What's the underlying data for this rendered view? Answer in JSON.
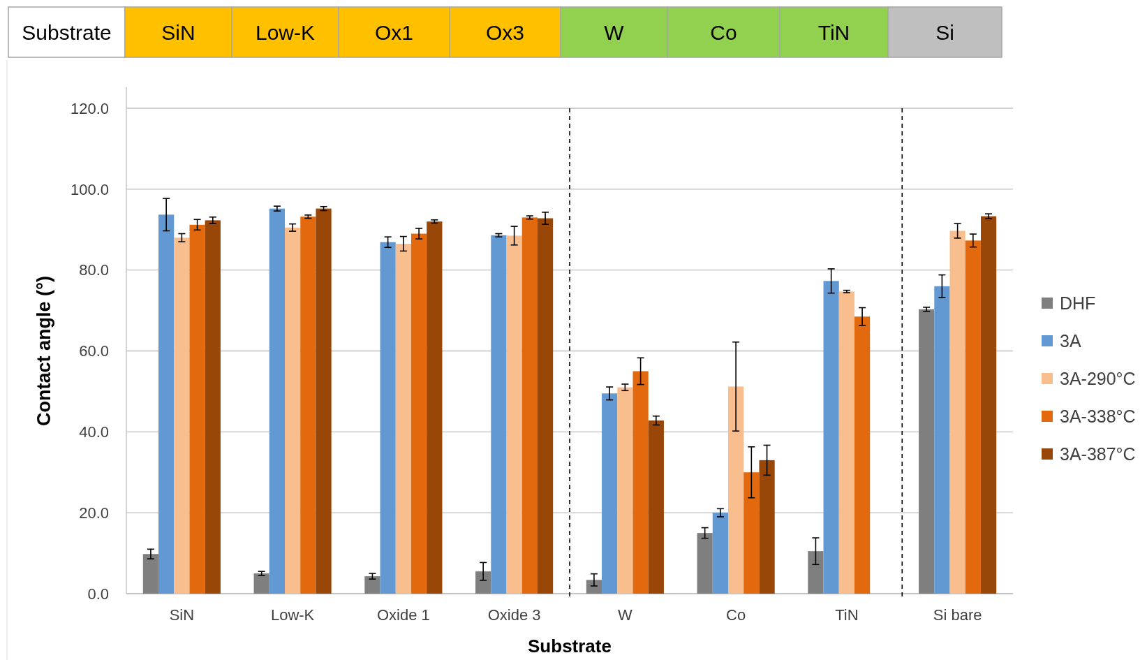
{
  "chart_data": {
    "type": "bar",
    "xlabel": "Substrate",
    "ylabel": "Contact angle (°)",
    "annotations": [
      "Substrate",
      "SiN",
      "Low-K",
      "Ox1",
      "Ox3",
      "W",
      "Co",
      "TiN",
      "Si"
    ],
    "categories": [
      "SiN",
      "Low-K",
      "Oxide 1",
      "Oxide 3",
      "W",
      "Co",
      "TiN",
      "Si bare"
    ],
    "series": [
      {
        "name": "DHF",
        "color": "#7f7f7f",
        "values": [
          9.8,
          5,
          4.3,
          5.5,
          3.4,
          15,
          10.5,
          70.3
        ],
        "errors": [
          1.2,
          0.5,
          0.7,
          2.2,
          1.5,
          1.3,
          3.3,
          0.5
        ]
      },
      {
        "name": "3A",
        "color": "#6399d3",
        "values": [
          93.7,
          95.2,
          86.9,
          88.6,
          49.5,
          20,
          77.3,
          76
        ],
        "errors": [
          4,
          0.6,
          1.3,
          0.4,
          1.6,
          1,
          3,
          2.8
        ]
      },
      {
        "name": "3A-290°C",
        "color": "#f8be8e",
        "values": [
          88,
          90.5,
          86.5,
          88.5,
          51,
          51.2,
          74.7,
          89.7
        ],
        "errors": [
          1,
          0.9,
          1.8,
          2.3,
          0.8,
          11,
          0.3,
          1.8
        ]
      },
      {
        "name": "3A-338°C",
        "color": "#e2690e",
        "values": [
          91.2,
          93.2,
          89,
          93,
          55,
          30,
          68.5,
          87.3
        ],
        "errors": [
          1.3,
          0.4,
          1.3,
          0.4,
          3.3,
          6.3,
          2.2,
          1.6
        ]
      },
      {
        "name": "3A-387°C",
        "color": "#994709",
        "values": [
          92.3,
          95.2,
          92,
          92.8,
          42.8,
          33,
          null,
          93.3
        ],
        "errors": [
          0.8,
          0.5,
          0.4,
          1.5,
          1.1,
          3.7,
          null,
          0.6
        ]
      }
    ],
    "ylim": [
      0,
      120
    ],
    "yticks": [
      {
        "value": 0,
        "label": "0.0"
      },
      {
        "value": 20,
        "label": "20.0"
      },
      {
        "value": 40,
        "label": "40.0"
      },
      {
        "value": 60,
        "label": "60.0"
      },
      {
        "value": 80,
        "label": "80.0"
      },
      {
        "value": 100,
        "label": "100.0"
      },
      {
        "value": 120,
        "label": "120.0"
      }
    ],
    "grid": "y",
    "legend": "right"
  }
}
